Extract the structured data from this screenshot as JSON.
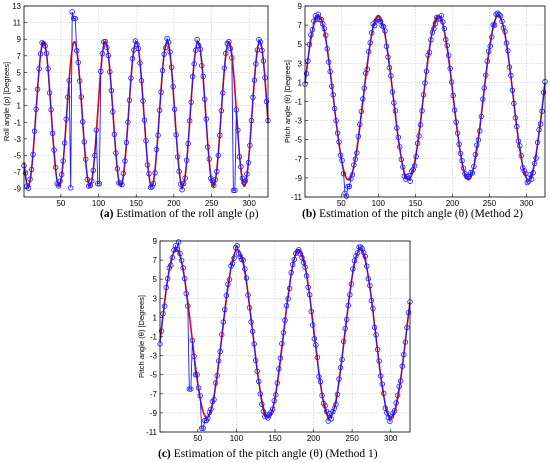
{
  "colors": {
    "truth": "#ee0000",
    "estimate": "#1a1aff"
  },
  "chart_data": [
    {
      "type": "line",
      "caption_letter": "(a)",
      "caption_text": "Estimation of the roll angle (ρ)",
      "ylabel": "Roll angle (ρ) [Degrees]",
      "xlabel": "",
      "xlim": [
        1,
        325
      ],
      "ylim": [
        -10,
        13
      ],
      "x_ticks": [
        50,
        100,
        150,
        200,
        250,
        300
      ],
      "y_ticks": [
        -9,
        -7,
        -5,
        -3,
        -1,
        1,
        3,
        5,
        7,
        9,
        11,
        13
      ],
      "grid": true,
      "series": [
        {
          "role": "reference",
          "style": "red solid line",
          "model": "sinusoid",
          "amplitude": 8.7,
          "offset": 0,
          "period": 41,
          "phase_peak_x": 27
        },
        {
          "role": "estimate",
          "style": "blue line with circle markers",
          "outliers": [
            [
              66,
              12.3
            ],
            [
              68,
              11.5
            ],
            [
              63,
              -8.9
            ],
            [
              100,
              -8.4
            ],
            [
              280,
              -9.2
            ]
          ]
        }
      ]
    },
    {
      "type": "line",
      "caption_letter": "(b)",
      "caption_text": "Estimation of the pitch angle (θ) (Method 2)",
      "ylabel": "Pitch angle (θ) [Degrees]",
      "xlabel": "",
      "xlim": [
        1,
        325
      ],
      "ylim": [
        -11,
        9
      ],
      "x_ticks": [
        50,
        100,
        150,
        200,
        250,
        300
      ],
      "y_ticks": [
        -11,
        -9,
        -7,
        -5,
        -3,
        -1,
        1,
        3,
        5,
        7,
        9
      ],
      "grid": true,
      "series": [
        {
          "role": "reference",
          "style": "red solid line",
          "model": "sinusoid",
          "amplitude": 8.6,
          "offset": -0.6,
          "period": 81,
          "phase_peak_x": 19
        },
        {
          "role": "estimate",
          "style": "blue line with circle markers",
          "outliers": [
            [
              55,
              -10.6
            ],
            [
              58,
              -10.9
            ],
            [
              60,
              -9.9
            ]
          ]
        }
      ]
    },
    {
      "type": "line",
      "caption_letter": "(c)",
      "caption_text": "Estimation of the pitch angle (θ) (Method 1)",
      "ylabel": "Pitch angle (θ) [Degrees]",
      "xlabel": "",
      "xlim": [
        1,
        325
      ],
      "ylim": [
        -11,
        9
      ],
      "x_ticks": [
        50,
        100,
        150,
        200,
        250,
        300
      ],
      "y_ticks": [
        -11,
        -9,
        -7,
        -5,
        -3,
        -1,
        1,
        3,
        5,
        7,
        9
      ],
      "grid": true,
      "series": [
        {
          "role": "reference",
          "style": "red solid line",
          "model": "sinusoid",
          "amplitude": 8.8,
          "offset": -0.7,
          "period": 79.5,
          "phase_peak_x": 22
        },
        {
          "role": "estimate",
          "style": "blue line with circle markers",
          "outliers": [
            [
              25,
              8.9
            ],
            [
              40,
              -6.5
            ],
            [
              48,
              -5.0
            ],
            [
              56,
              -10.6
            ],
            [
              60,
              -9.8
            ]
          ]
        }
      ]
    }
  ]
}
